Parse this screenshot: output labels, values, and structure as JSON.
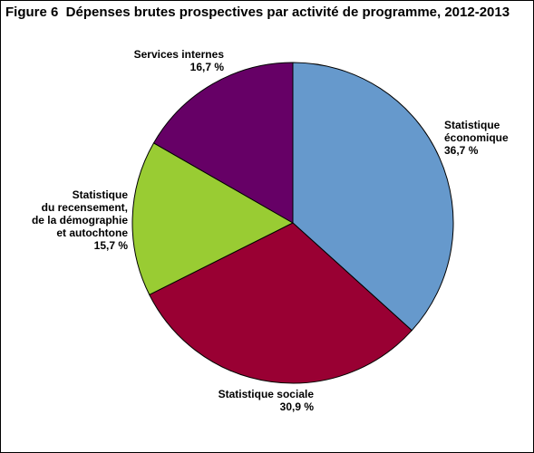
{
  "chart_data": {
    "type": "pie",
    "title": "Figure 6  Dépenses brutes prospectives par activité de programme, 2012-2013",
    "slices": [
      {
        "lines": [
          "Statistique",
          "économique"
        ],
        "value": 36.7,
        "value_label": "36,7 %",
        "color": "#6699CC"
      },
      {
        "lines": [
          "Statistique sociale"
        ],
        "value": 30.9,
        "value_label": "30,9 %",
        "color": "#990033"
      },
      {
        "lines": [
          "Statistique",
          "du recensement,",
          "de la démographie",
          "et autochtone"
        ],
        "value": 15.7,
        "value_label": "15,7 %",
        "color": "#99CC33"
      },
      {
        "lines": [
          "Services internes"
        ],
        "value": 16.7,
        "value_label": "16,7 %",
        "color": "#660066"
      }
    ]
  }
}
